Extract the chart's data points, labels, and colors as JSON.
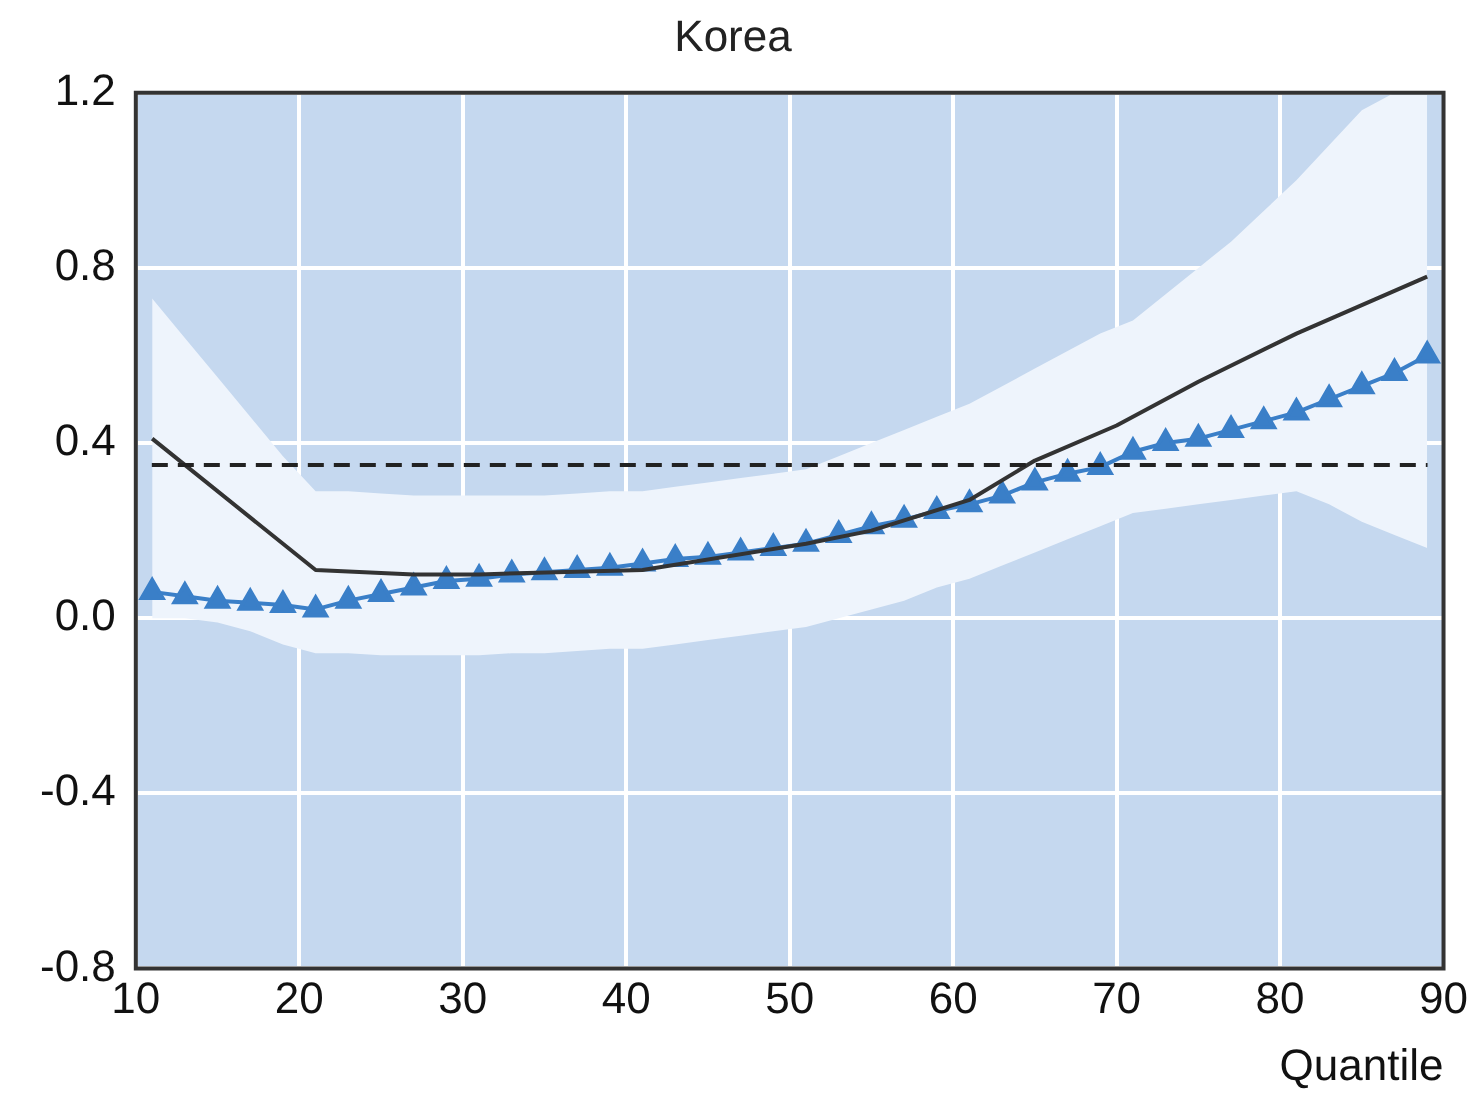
{
  "chart_data": {
    "type": "line",
    "title": "Korea",
    "xlabel": "Quantile",
    "xlim": [
      10,
      90
    ],
    "xticks": [
      10,
      20,
      30,
      40,
      50,
      60,
      70,
      80,
      90
    ],
    "ylim": [
      -0.8,
      1.2
    ],
    "yticks": [
      {
        "value": -0.8,
        "label": "-0.8"
      },
      {
        "value": -0.4,
        "label": "-0.4"
      },
      {
        "value": 0,
        "label": "0.0"
      },
      {
        "value": 0.4,
        "label": "0.4"
      },
      {
        "value": 0.8,
        "label": "0.8"
      },
      {
        "value": 1.2,
        "label": "1.2"
      }
    ],
    "grid": true,
    "legend": false,
    "ref_lines": [
      {
        "axis": "y",
        "value": 0.35,
        "color": "#222222",
        "line_style": "dashed"
      }
    ],
    "series": [
      {
        "color": "#333333",
        "marker": "none",
        "line_style": "solid",
        "x": [
          11,
          21,
          27,
          31,
          41,
          51,
          55,
          61,
          65,
          70,
          75,
          81,
          89
        ],
        "values": [
          0.41,
          0.11,
          0.1,
          0.1,
          0.11,
          0.17,
          0.2,
          0.27,
          0.36,
          0.44,
          0.54,
          0.65,
          0.78
        ]
      },
      {
        "color": "#3a7fc8",
        "marker": "triangle",
        "line_style": "solid",
        "x": [
          11,
          13,
          15,
          17,
          19,
          21,
          23,
          25,
          27,
          29,
          31,
          33,
          35,
          37,
          39,
          41,
          43,
          45,
          47,
          49,
          51,
          53,
          55,
          57,
          59,
          61,
          63,
          65,
          67,
          69,
          71,
          73,
          75,
          77,
          79,
          81,
          83,
          85,
          87,
          89
        ],
        "values": [
          0.06,
          0.05,
          0.04,
          0.035,
          0.03,
          0.02,
          0.04,
          0.055,
          0.07,
          0.085,
          0.09,
          0.1,
          0.105,
          0.11,
          0.115,
          0.125,
          0.135,
          0.14,
          0.15,
          0.16,
          0.17,
          0.19,
          0.21,
          0.225,
          0.245,
          0.26,
          0.28,
          0.31,
          0.33,
          0.345,
          0.38,
          0.4,
          0.41,
          0.43,
          0.45,
          0.47,
          0.5,
          0.53,
          0.56,
          0.6
        ],
        "upper": [
          0.73,
          0.64,
          0.55,
          0.46,
          0.37,
          0.29,
          0.29,
          0.285,
          0.28,
          0.28,
          0.28,
          0.28,
          0.28,
          0.285,
          0.29,
          0.29,
          0.3,
          0.31,
          0.32,
          0.33,
          0.34,
          0.37,
          0.4,
          0.43,
          0.46,
          0.49,
          0.53,
          0.57,
          0.61,
          0.65,
          0.68,
          0.74,
          0.8,
          0.86,
          0.93,
          1.0,
          1.08,
          1.16,
          1.2,
          1.2
        ],
        "lower": [
          0.0,
          0.0,
          -0.01,
          -0.03,
          -0.06,
          -0.08,
          -0.08,
          -0.085,
          -0.085,
          -0.085,
          -0.085,
          -0.08,
          -0.08,
          -0.075,
          -0.07,
          -0.07,
          -0.06,
          -0.05,
          -0.04,
          -0.03,
          -0.02,
          0.0,
          0.02,
          0.04,
          0.07,
          0.09,
          0.12,
          0.15,
          0.18,
          0.21,
          0.24,
          0.25,
          0.26,
          0.27,
          0.28,
          0.29,
          0.26,
          0.22,
          0.19,
          0.16
        ]
      }
    ]
  }
}
